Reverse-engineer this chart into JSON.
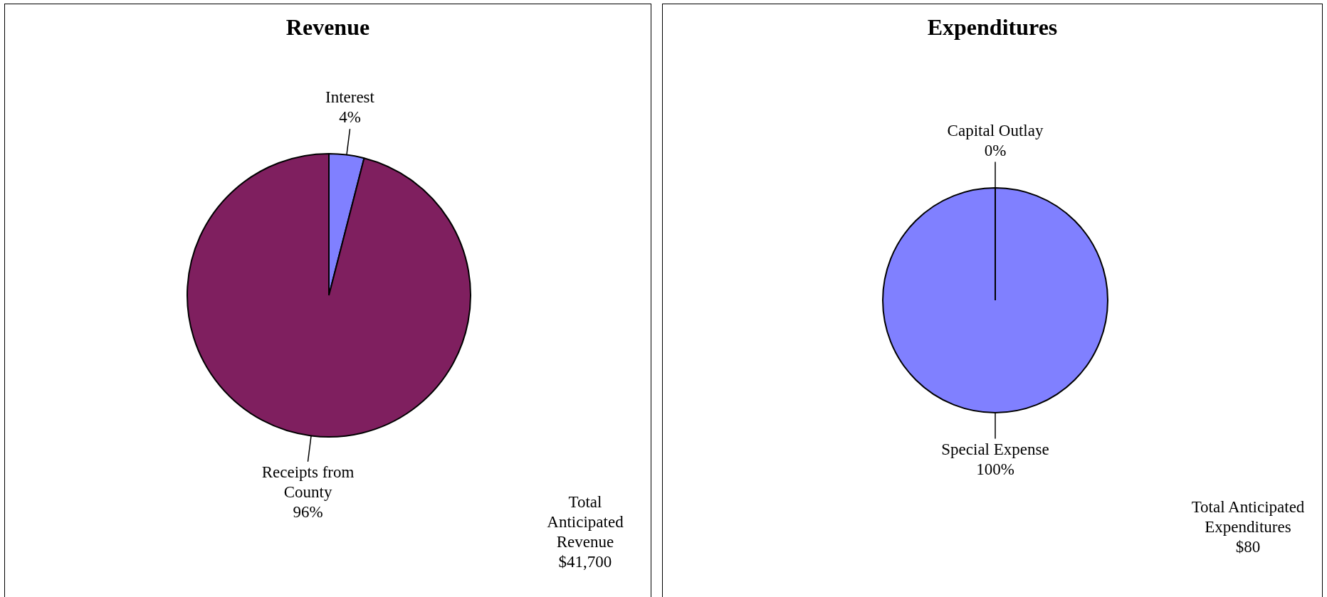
{
  "chart_data": [
    {
      "type": "pie",
      "title": "Revenue",
      "categories": [
        "Interest",
        "Receipts from County"
      ],
      "values": [
        4,
        96
      ],
      "colors": [
        "#8080ff",
        "#7f1f5f"
      ],
      "value_labels": [
        "4%",
        "96%"
      ],
      "annotations": [
        "Total\nAnticipated\nRevenue\n$41,700"
      ]
    },
    {
      "type": "pie",
      "title": "Expenditures",
      "categories": [
        "Capital Outlay",
        "Special Expense"
      ],
      "values": [
        0,
        100
      ],
      "colors": [
        "#7f1f5f",
        "#8080ff"
      ],
      "value_labels": [
        "0%",
        "100%"
      ],
      "annotations": [
        "Total Anticipated\nExpenditures\n$80"
      ]
    }
  ]
}
